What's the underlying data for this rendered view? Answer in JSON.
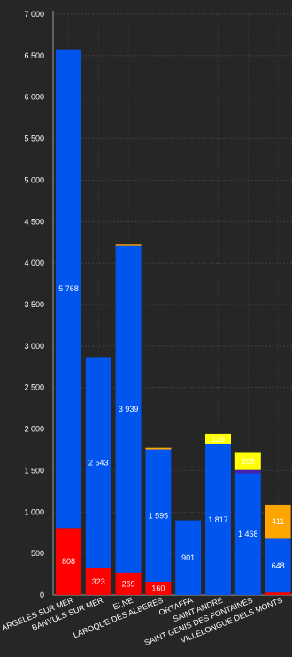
{
  "chart_data": {
    "type": "bar",
    "stacked": true,
    "categories": [
      "ARGELES SUR MER",
      "BANYULS SUR MER",
      "ELNE",
      "LAROQUE DES ALBERES",
      "ORTAFFA",
      "SAINT ANDRE",
      "SAINT GENIS DES FONTAINES",
      "VILLELONGUE DELS MONTS"
    ],
    "series": [
      {
        "color": "#ff0000",
        "values": [
          808,
          323,
          269,
          160,
          0,
          0,
          0,
          30
        ]
      },
      {
        "color": "#0055ee",
        "values": [
          5768,
          2543,
          3939,
          1595,
          901,
          1817,
          1468,
          648
        ]
      },
      {
        "color": "#4a1fb0",
        "values": [
          0,
          0,
          0,
          0,
          0,
          0,
          40,
          0
        ]
      },
      {
        "color": "#ffa500",
        "values": [
          0,
          0,
          15,
          20,
          0,
          0,
          0,
          411
        ]
      },
      {
        "color": "#ffff00",
        "values": [
          0,
          0,
          0,
          0,
          0,
          126,
          205,
          0
        ]
      }
    ],
    "data_labels": [
      [
        "808",
        "323",
        "269",
        "160",
        "",
        "",
        "",
        ""
      ],
      [
        "5 768",
        "2 543",
        "3 939",
        "1 595",
        "901",
        "1 817",
        "1 468",
        "648"
      ],
      [
        "",
        "",
        "",
        "",
        "",
        "",
        "",
        ""
      ],
      [
        "",
        "",
        "",
        "",
        "",
        "",
        "",
        "411"
      ],
      [
        "",
        "",
        "",
        "",
        "",
        "126",
        "205",
        ""
      ]
    ],
    "yticks": [
      "0",
      "500",
      "1 000",
      "1 500",
      "2 000",
      "2 500",
      "3 000",
      "3 500",
      "4 000",
      "4 500",
      "5 000",
      "5 500",
      "6 000",
      "6 500",
      "7 000"
    ],
    "ylim": [
      0,
      7000
    ],
    "grid": true,
    "background": "#262626",
    "text_color": "#ffffff"
  }
}
